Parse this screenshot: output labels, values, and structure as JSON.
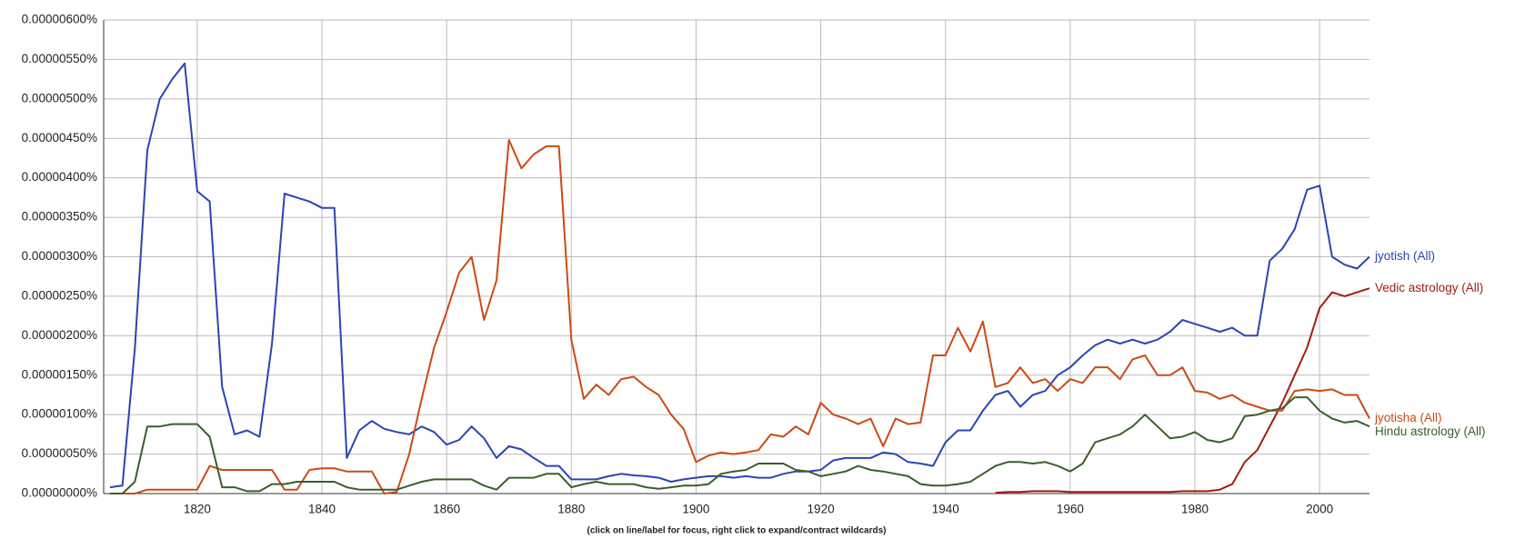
{
  "chart_data": {
    "type": "line",
    "note": "(click on line/label for focus, right click to expand/contract wildcards)",
    "xlim": [
      1805,
      2008
    ],
    "xticks": [
      1820,
      1840,
      1860,
      1880,
      1900,
      1920,
      1940,
      1960,
      1980,
      2000
    ],
    "ylim": [
      0,
      6e-06
    ],
    "yticks": [
      {
        "value": 0,
        "label": "0.00000000%"
      },
      {
        "value": 5e-07,
        "label": "0.00000050%"
      },
      {
        "value": 1e-06,
        "label": "0.00000100%"
      },
      {
        "value": 1.5e-06,
        "label": "0.00000150%"
      },
      {
        "value": 2e-06,
        "label": "0.00000200%"
      },
      {
        "value": 2.5e-06,
        "label": "0.00000250%"
      },
      {
        "value": 3e-06,
        "label": "0.00000300%"
      },
      {
        "value": 3.5e-06,
        "label": "0.00000350%"
      },
      {
        "value": 4e-06,
        "label": "0.00000400%"
      },
      {
        "value": 4.5e-06,
        "label": "0.00000450%"
      },
      {
        "value": 5e-06,
        "label": "0.00000500%"
      },
      {
        "value": 5.5e-06,
        "label": "0.00000550%"
      },
      {
        "value": 6e-06,
        "label": "0.00000600%"
      }
    ],
    "grid": true,
    "x": [
      1806,
      1808,
      1810,
      1812,
      1814,
      1816,
      1818,
      1820,
      1822,
      1824,
      1826,
      1828,
      1830,
      1832,
      1834,
      1836,
      1838,
      1840,
      1842,
      1844,
      1846,
      1848,
      1850,
      1852,
      1854,
      1856,
      1858,
      1860,
      1862,
      1864,
      1866,
      1868,
      1870,
      1872,
      1874,
      1876,
      1878,
      1880,
      1882,
      1884,
      1886,
      1888,
      1890,
      1892,
      1894,
      1896,
      1898,
      1900,
      1902,
      1904,
      1906,
      1908,
      1910,
      1912,
      1914,
      1916,
      1918,
      1920,
      1922,
      1924,
      1926,
      1928,
      1930,
      1932,
      1934,
      1936,
      1938,
      1940,
      1942,
      1944,
      1946,
      1948,
      1950,
      1952,
      1954,
      1956,
      1958,
      1960,
      1962,
      1964,
      1966,
      1968,
      1970,
      1972,
      1974,
      1976,
      1978,
      1980,
      1982,
      1984,
      1986,
      1988,
      1990,
      1992,
      1994,
      1996,
      1998,
      2000,
      2002,
      2004,
      2006,
      2008
    ],
    "series": [
      {
        "name": "jyotish (All)",
        "color": "#2b45b4",
        "values": [
          8e-08,
          1e-07,
          1.84e-06,
          4.35e-06,
          5e-06,
          5.25e-06,
          5.45e-06,
          3.83e-06,
          3.7e-06,
          1.35e-06,
          7.5e-07,
          8e-07,
          7.2e-07,
          1.9e-06,
          3.8e-06,
          3.75e-06,
          3.7e-06,
          3.62e-06,
          3.62e-06,
          4.5e-07,
          8e-07,
          9.2e-07,
          8.2e-07,
          7.8e-07,
          7.5e-07,
          8.5e-07,
          7.8e-07,
          6.2e-07,
          6.8e-07,
          8.5e-07,
          7e-07,
          4.5e-07,
          6e-07,
          5.6e-07,
          4.5e-07,
          3.5e-07,
          3.5e-07,
          1.8e-07,
          1.8e-07,
          1.8e-07,
          2.2e-07,
          2.5e-07,
          2.3e-07,
          2.2e-07,
          2e-07,
          1.5e-07,
          1.8e-07,
          2e-07,
          2.2e-07,
          2.2e-07,
          2e-07,
          2.2e-07,
          2e-07,
          2e-07,
          2.5e-07,
          2.8e-07,
          2.8e-07,
          3e-07,
          4.2e-07,
          4.5e-07,
          4.5e-07,
          4.5e-07,
          5.2e-07,
          5e-07,
          4e-07,
          3.8e-07,
          3.5e-07,
          6.5e-07,
          8e-07,
          8e-07,
          1.05e-06,
          1.25e-06,
          1.3e-06,
          1.1e-06,
          1.25e-06,
          1.3e-06,
          1.5e-06,
          1.6e-06,
          1.75e-06,
          1.88e-06,
          1.95e-06,
          1.9e-06,
          1.95e-06,
          1.9e-06,
          1.95e-06,
          2.05e-06,
          2.2e-06,
          2.15e-06,
          2.1e-06,
          2.05e-06,
          2.1e-06,
          2e-06,
          2e-06,
          2.95e-06,
          3.1e-06,
          3.35e-06,
          3.85e-06,
          3.9e-06,
          3e-06,
          2.9e-06,
          2.85e-06,
          3e-06
        ]
      },
      {
        "name": "Vedic astrology (All)",
        "color": "#a11d12",
        "values": [
          null,
          null,
          null,
          null,
          null,
          null,
          null,
          null,
          null,
          null,
          null,
          null,
          null,
          null,
          null,
          null,
          null,
          null,
          null,
          null,
          null,
          null,
          null,
          null,
          null,
          null,
          null,
          null,
          null,
          null,
          null,
          null,
          null,
          null,
          null,
          null,
          null,
          null,
          null,
          null,
          null,
          null,
          null,
          null,
          null,
          null,
          null,
          null,
          null,
          null,
          null,
          null,
          null,
          null,
          null,
          null,
          null,
          null,
          null,
          null,
          null,
          null,
          null,
          null,
          null,
          null,
          null,
          null,
          null,
          null,
          null,
          1e-08,
          2e-08,
          2e-08,
          3e-08,
          3e-08,
          3e-08,
          2e-08,
          2e-08,
          2e-08,
          2e-08,
          2e-08,
          2e-08,
          2e-08,
          2e-08,
          2e-08,
          3e-08,
          3e-08,
          3e-08,
          5e-08,
          1.2e-07,
          4e-07,
          5.5e-07,
          8.5e-07,
          1.15e-06,
          1.5e-06,
          1.85e-06,
          2.35e-06,
          2.55e-06,
          2.5e-06,
          2.55e-06,
          2.6e-06
        ]
      },
      {
        "name": "jyotisha (All)",
        "color": "#cc4a14",
        "values": [
          0,
          0,
          0,
          5e-08,
          5e-08,
          5e-08,
          5e-08,
          5e-08,
          3.5e-07,
          3e-07,
          3e-07,
          3e-07,
          3e-07,
          3e-07,
          5e-08,
          5e-08,
          3e-07,
          3.2e-07,
          3.2e-07,
          2.8e-07,
          2.8e-07,
          2.8e-07,
          0,
          2e-08,
          5e-07,
          1.2e-06,
          1.85e-06,
          2.3e-06,
          2.8e-06,
          3e-06,
          2.2e-06,
          2.7e-06,
          4.48e-06,
          4.12e-06,
          4.3e-06,
          4.4e-06,
          4.4e-06,
          1.95e-06,
          1.2e-06,
          1.38e-06,
          1.25e-06,
          1.45e-06,
          1.48e-06,
          1.35e-06,
          1.25e-06,
          1e-06,
          8.2e-07,
          4e-07,
          4.8e-07,
          5.2e-07,
          5e-07,
          5.2e-07,
          5.5e-07,
          7.5e-07,
          7.2e-07,
          8.5e-07,
          7.5e-07,
          1.15e-06,
          1e-06,
          9.5e-07,
          8.8e-07,
          9.5e-07,
          6e-07,
          9.5e-07,
          8.8e-07,
          9e-07,
          1.75e-06,
          1.75e-06,
          2.1e-06,
          1.8e-06,
          2.18e-06,
          1.35e-06,
          1.4e-06,
          1.6e-06,
          1.4e-06,
          1.45e-06,
          1.3e-06,
          1.45e-06,
          1.4e-06,
          1.6e-06,
          1.6e-06,
          1.45e-06,
          1.7e-06,
          1.75e-06,
          1.5e-06,
          1.5e-06,
          1.6e-06,
          1.3e-06,
          1.28e-06,
          1.2e-06,
          1.25e-06,
          1.15e-06,
          1.1e-06,
          1.05e-06,
          1.05e-06,
          1.3e-06,
          1.32e-06,
          1.3e-06,
          1.32e-06,
          1.25e-06,
          1.25e-06,
          9.5e-07
        ]
      },
      {
        "name": "Hindu astrology (All)",
        "color": "#3b5e2b",
        "values": [
          0,
          0,
          1.5e-07,
          8.5e-07,
          8.5e-07,
          8.8e-07,
          8.8e-07,
          8.8e-07,
          7.2e-07,
          8e-08,
          8e-08,
          3e-08,
          3e-08,
          1.2e-07,
          1.2e-07,
          1.5e-07,
          1.5e-07,
          1.5e-07,
          1.5e-07,
          8e-08,
          5e-08,
          5e-08,
          5e-08,
          5e-08,
          1e-07,
          1.5e-07,
          1.8e-07,
          1.8e-07,
          1.8e-07,
          1.8e-07,
          1e-07,
          5e-08,
          2e-07,
          2e-07,
          2e-07,
          2.5e-07,
          2.5e-07,
          8e-08,
          1.2e-07,
          1.5e-07,
          1.2e-07,
          1.2e-07,
          1.2e-07,
          8e-08,
          6e-08,
          8e-08,
          1e-07,
          1e-07,
          1.2e-07,
          2.5e-07,
          2.8e-07,
          3e-07,
          3.8e-07,
          3.8e-07,
          3.8e-07,
          3e-07,
          2.8e-07,
          2.2e-07,
          2.5e-07,
          2.8e-07,
          3.5e-07,
          3e-07,
          2.8e-07,
          2.5e-07,
          2.2e-07,
          1.2e-07,
          1e-07,
          1e-07,
          1.2e-07,
          1.5e-07,
          2.5e-07,
          3.5e-07,
          4e-07,
          4e-07,
          3.8e-07,
          4e-07,
          3.5e-07,
          2.8e-07,
          3.8e-07,
          6.5e-07,
          7e-07,
          7.5e-07,
          8.5e-07,
          1e-06,
          8.5e-07,
          7e-07,
          7.2e-07,
          7.8e-07,
          6.8e-07,
          6.5e-07,
          7e-07,
          9.8e-07,
          1e-06,
          1.05e-06,
          1.08e-06,
          1.22e-06,
          1.22e-06,
          1.05e-06,
          9.5e-07,
          9e-07,
          9.2e-07,
          8.5e-07
        ]
      }
    ]
  }
}
